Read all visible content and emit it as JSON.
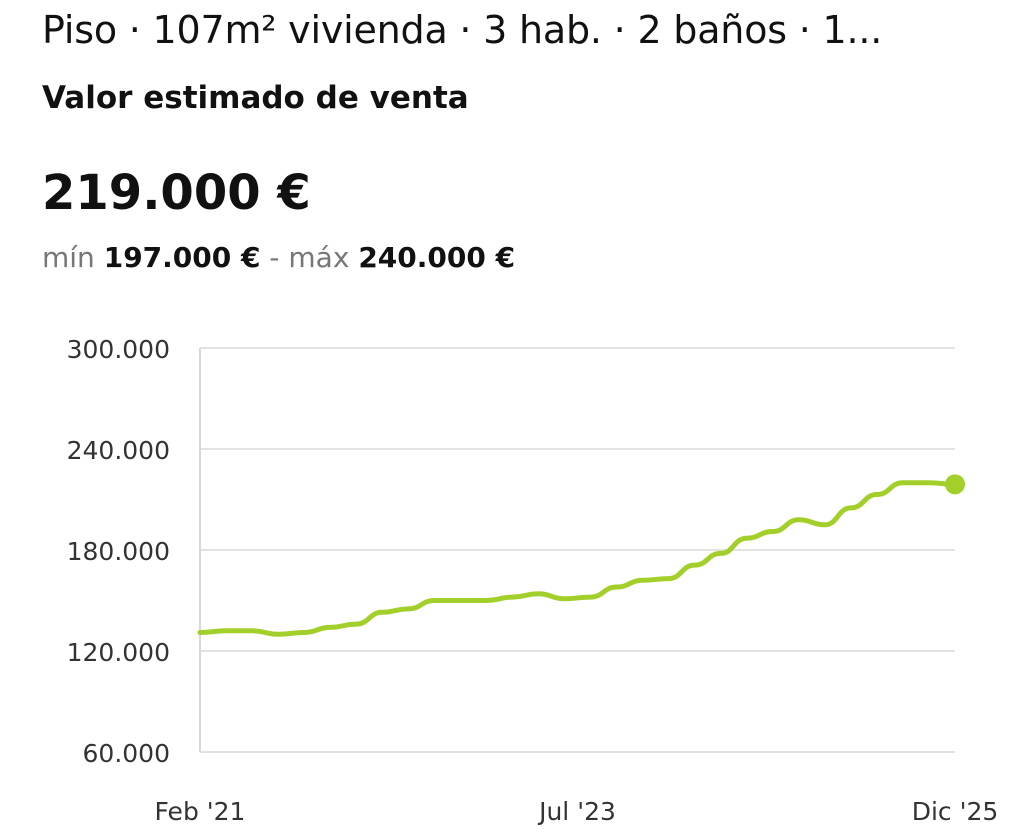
{
  "listing": {
    "title": "Piso · 107m² vivienda · 3 hab. · 2 baños · 1...",
    "subtitle": "Valor estimado de venta",
    "price": "219.000 €",
    "min_label": "mín",
    "min_value": "197.000 €",
    "separator": "-",
    "max_label": "máx",
    "max_value": "240.000 €"
  },
  "colors": {
    "line": "#a3cf2a",
    "grid": "#e2e2e2",
    "axis": "#d8d8d8",
    "tick_text": "#333333"
  },
  "chart_data": {
    "type": "line",
    "title": "",
    "xlabel": "",
    "ylabel": "",
    "ylim": [
      60000,
      300000
    ],
    "y_ticks": [
      60000,
      120000,
      180000,
      240000,
      300000
    ],
    "y_tick_labels": [
      "60.000",
      "120.000",
      "180.000",
      "240.000",
      "300.000"
    ],
    "x_ticks": [
      "2021-02",
      "2023-07",
      "2025-12"
    ],
    "x_tick_labels": [
      "Feb '21",
      "Jul '23",
      "Dic '25"
    ],
    "grid": true,
    "series": [
      {
        "x": [
          "2021-02",
          "2021-04",
          "2021-06",
          "2021-08",
          "2021-10",
          "2021-12",
          "2022-02",
          "2022-04",
          "2022-06",
          "2022-08",
          "2022-10",
          "2022-12",
          "2023-02",
          "2023-04",
          "2023-06",
          "2023-08",
          "2023-10",
          "2023-12",
          "2024-02",
          "2024-04",
          "2024-06",
          "2024-08",
          "2024-10",
          "2024-12",
          "2025-02",
          "2025-04",
          "2025-06",
          "2025-08",
          "2025-10",
          "2025-12"
        ],
        "values": [
          131000,
          132000,
          132000,
          130000,
          131000,
          134000,
          136000,
          143000,
          145000,
          150000,
          150000,
          150000,
          152000,
          154000,
          151000,
          152000,
          158000,
          162000,
          163000,
          171000,
          178000,
          187000,
          191000,
          198000,
          195000,
          205000,
          213000,
          220000,
          220000,
          219000
        ]
      }
    ]
  }
}
